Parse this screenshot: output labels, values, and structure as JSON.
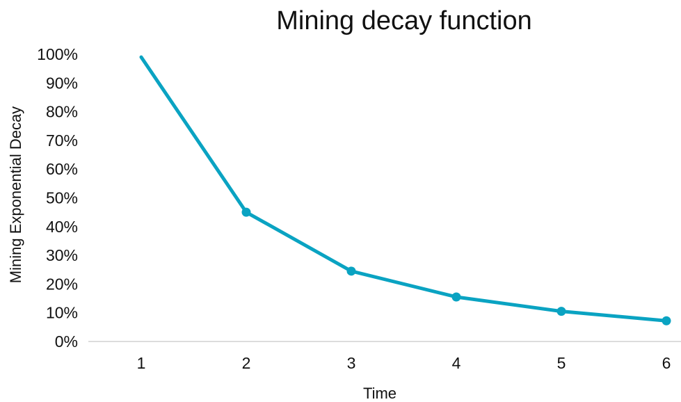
{
  "chart_data": {
    "type": "line",
    "title": "Mining decay function",
    "xlabel": "Time",
    "ylabel": "Mining Exponential Decay",
    "x": [
      1,
      2,
      3,
      4,
      5,
      6
    ],
    "categories": [
      "1",
      "2",
      "3",
      "4",
      "5",
      "6"
    ],
    "series": [
      {
        "values": [
          0.99,
          0.45,
          0.245,
          0.155,
          0.105,
          0.072
        ],
        "markers": [
          false,
          true,
          true,
          true,
          true,
          true
        ]
      }
    ],
    "ylim": [
      0,
      1
    ],
    "yticks": [
      0,
      0.1,
      0.2,
      0.3,
      0.4,
      0.5,
      0.6,
      0.7,
      0.8,
      0.9,
      1.0
    ],
    "ytick_labels": [
      "0%",
      "10%",
      "20%",
      "30%",
      "40%",
      "50%",
      "60%",
      "70%",
      "80%",
      "90%",
      "100%"
    ],
    "grid": false,
    "legend": "none",
    "colors": {
      "line": "#0aa3c2",
      "axis": "#d0d0d0",
      "text": "#111111"
    }
  }
}
